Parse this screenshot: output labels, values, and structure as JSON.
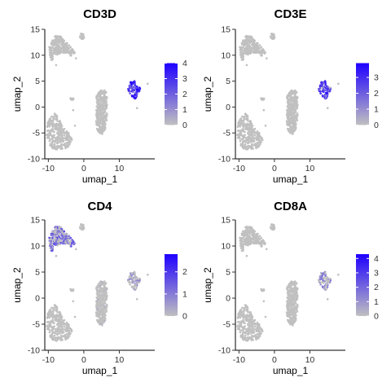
{
  "chart_data": [
    {
      "type": "scatter",
      "title": "CD3D",
      "xlabel": "umap_1",
      "ylabel": "umap_2",
      "xlim": [
        -11,
        20
      ],
      "ylim": [
        -10,
        15
      ],
      "x_ticks": [
        "-10",
        "0",
        "10"
      ],
      "x_tick_values": [
        -10,
        0,
        10
      ],
      "y_ticks": [
        "15",
        "10",
        "5",
        "0",
        "-5",
        "-10"
      ],
      "y_tick_values": [
        15,
        10,
        5,
        0,
        -5,
        -10
      ],
      "colorbar": {
        "min": 0,
        "max": 4,
        "ticks": [
          "4",
          "3",
          "2",
          "1",
          "0"
        ],
        "tick_values": [
          4,
          3,
          2,
          1,
          0
        ],
        "low_color": "#C0C0C0",
        "high_color": "#1E00FF"
      },
      "expression": {
        "cluster_a": 0.1,
        "cluster_b": 0.0,
        "cluster_c": 0.15,
        "cluster_d": 0.0,
        "cluster_e": 3.2,
        "cluster_f": 0.05
      }
    },
    {
      "type": "scatter",
      "title": "CD3E",
      "xlabel": "umap_1",
      "ylabel": "umap_2",
      "xlim": [
        -11,
        20
      ],
      "ylim": [
        -10,
        15
      ],
      "x_ticks": [
        "-10",
        "0",
        "10"
      ],
      "x_tick_values": [
        -10,
        0,
        10
      ],
      "y_ticks": [
        "15",
        "10",
        "5",
        "0",
        "-5",
        "-10"
      ],
      "y_tick_values": [
        15,
        10,
        5,
        0,
        -5,
        -10
      ],
      "colorbar": {
        "min": 0,
        "max": 3.9,
        "ticks": [
          "3",
          "2",
          "1",
          "0"
        ],
        "tick_values": [
          3,
          2,
          1,
          0
        ],
        "low_color": "#C0C0C0",
        "high_color": "#1E00FF"
      },
      "expression": {
        "cluster_a": 0.1,
        "cluster_b": 0.0,
        "cluster_c": 0.1,
        "cluster_d": 0.0,
        "cluster_e": 2.9,
        "cluster_f": 0.05
      }
    },
    {
      "type": "scatter",
      "title": "CD4",
      "xlabel": "umap_1",
      "ylabel": "umap_2",
      "xlim": [
        -11,
        20
      ],
      "ylim": [
        -10,
        15
      ],
      "x_ticks": [
        "-10",
        "0",
        "10"
      ],
      "x_tick_values": [
        -10,
        0,
        10
      ],
      "y_ticks": [
        "15",
        "10",
        "5",
        "0",
        "-5",
        "-10"
      ],
      "y_tick_values": [
        15,
        10,
        5,
        0,
        -5,
        -10
      ],
      "colorbar": {
        "min": 0,
        "max": 2.8,
        "ticks": [
          "2",
          "1",
          "0"
        ],
        "tick_values": [
          2,
          1,
          0
        ],
        "low_color": "#C0C0C0",
        "high_color": "#1E00FF"
      },
      "expression": {
        "cluster_a": 1.4,
        "cluster_b": 0.0,
        "cluster_c": 0.2,
        "cluster_d": 0.0,
        "cluster_e": 0.8,
        "cluster_f": 0.05
      }
    },
    {
      "type": "scatter",
      "title": "CD8A",
      "xlabel": "umap_1",
      "ylabel": "umap_2",
      "xlim": [
        -11,
        20
      ],
      "ylim": [
        -10,
        15
      ],
      "x_ticks": [
        "-10",
        "0",
        "10"
      ],
      "x_tick_values": [
        -10,
        0,
        10
      ],
      "y_ticks": [
        "15",
        "10",
        "5",
        "0",
        "-5",
        "-10"
      ],
      "y_tick_values": [
        15,
        10,
        5,
        0,
        -5,
        -10
      ],
      "colorbar": {
        "min": 0,
        "max": 4.3,
        "ticks": [
          "4",
          "3",
          "2",
          "1",
          "0"
        ],
        "tick_values": [
          4,
          3,
          2,
          1,
          0
        ],
        "low_color": "#C0C0C0",
        "high_color": "#1E00FF"
      },
      "expression": {
        "cluster_a": 0.0,
        "cluster_b": 0.0,
        "cluster_c": 0.05,
        "cluster_d": 0.0,
        "cluster_e": 1.6,
        "cluster_f": 0.0
      }
    }
  ]
}
